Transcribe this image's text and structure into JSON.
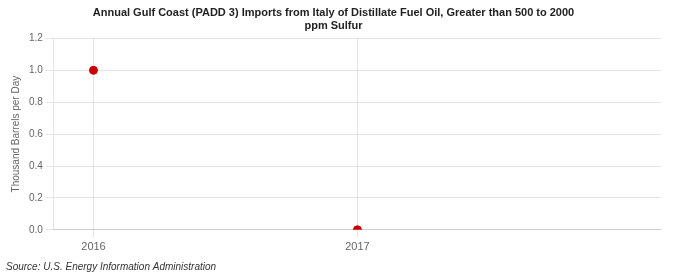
{
  "chart_data": {
    "type": "scatter",
    "title": "Annual Gulf Coast (PADD 3) Imports from Italy of Distillate Fuel Oil, Greater than 500 to 2000\nppm Sulfur",
    "y_label": "Thousand Barrels per Day",
    "annotations": [
      "Source: U.S. Energy Information Administration"
    ],
    "x": [
      2016,
      2017
    ],
    "values": [
      1.0,
      0.0
    ],
    "color": "#cc0000",
    "marker": "circle",
    "xlim": [
      2015.85,
      2018.15
    ],
    "xticks": [
      2016,
      2017
    ],
    "ylim": [
      0.0,
      1.2
    ],
    "yticks": [
      {
        "value": 0.0,
        "label": "0.0"
      },
      0.2,
      0.4,
      0.6,
      0.8,
      {
        "value": 1.0,
        "label": "1.0"
      },
      1.2
    ],
    "grid": true
  }
}
